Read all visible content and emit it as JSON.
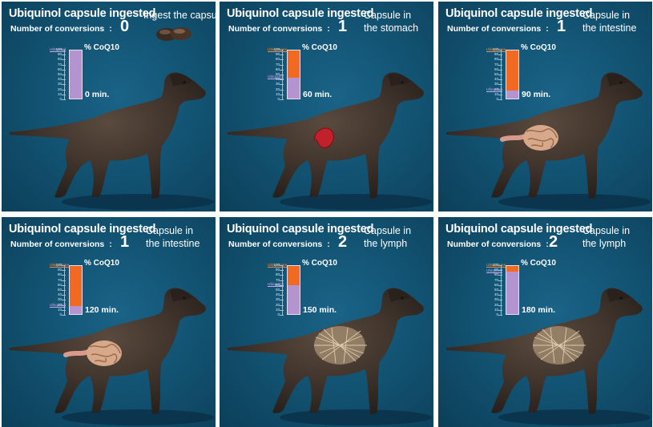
{
  "panels": [
    {
      "title": "Ubiquinol capsule ingested",
      "conversions_label": "Number of conversions",
      "colon": ":",
      "conversions": "0",
      "stage": "Ingest the capsule",
      "chart_title": "% CoQ10",
      "ubiquinol_label": "Ubiquinol",
      "ubiquinone_label": "",
      "ubiquinol_percent": 100,
      "ubiquinone_percent": 0,
      "time": "0 min.",
      "organ": "capsule"
    },
    {
      "title": "Ubiquinol capsule ingested",
      "conversions_label": "Number of conversions",
      "colon": ":",
      "conversions": "1",
      "stage": "Capsule in\nthe stomach",
      "chart_title": "% CoQ10",
      "ubiquinol_label": "Ubiquinol",
      "ubiquinone_label": "Ubiquinone",
      "ubiquinol_percent": 45,
      "ubiquinone_percent": 55,
      "time": "60 min.",
      "organ": "stomach"
    },
    {
      "title": "Ubiquinol capsule ingested",
      "conversions_label": "Number of conversions",
      "colon": ":",
      "conversions": "1",
      "stage": "Capsule in\nthe intestine",
      "chart_title": "% CoQ10",
      "ubiquinol_label": "Ubiquinol",
      "ubiquinone_label": "Ubiquinone",
      "ubiquinol_percent": 20,
      "ubiquinone_percent": 80,
      "time": "90 min.",
      "organ": "intestine"
    },
    {
      "title": "Ubiquinol capsule ingested",
      "conversions_label": "Number of conversions",
      "colon": ":",
      "conversions": "1",
      "stage": "Capsule in\nthe intestine",
      "chart_title": "% CoQ10",
      "ubiquinol_label": "Ubiquinol",
      "ubiquinone_label": "Ubiquinone",
      "ubiquinol_percent": 20,
      "ubiquinone_percent": 80,
      "time": "120 min.",
      "organ": "intestine"
    },
    {
      "title": "Ubiquinol capsule ingested",
      "conversions_label": "Number of conversions",
      "colon": ":",
      "conversions": "2",
      "stage": "Capsule in\nthe lymph",
      "chart_title": "% CoQ10",
      "ubiquinol_label": "Ubiquinol",
      "ubiquinone_label": "Ubiquinone",
      "ubiquinol_percent": 62,
      "ubiquinone_percent": 38,
      "time": "150 min.",
      "organ": "lymph"
    },
    {
      "title": "Ubiquinol capsule ingested",
      "conversions_label": "Number of conversions",
      "colon": ":",
      "conversions": "2",
      "stage": "Capsule in\nthe lymph",
      "chart_title": "% CoQ10",
      "ubiquinol_label": "Ubiquinol",
      "ubiquinone_label": "Ubiquinone",
      "ubiquinol_percent": 88,
      "ubiquinone_percent": 12,
      "time": "180 min.",
      "organ": "lymph"
    }
  ],
  "ticks": [
    "100",
    "90",
    "80",
    "70",
    "60",
    "50",
    "40",
    "30",
    "20",
    "10",
    "0"
  ],
  "colors": {
    "ubiquinol": "#b494d0",
    "ubiquinone": "#f26a22",
    "background": "#11506f"
  }
}
